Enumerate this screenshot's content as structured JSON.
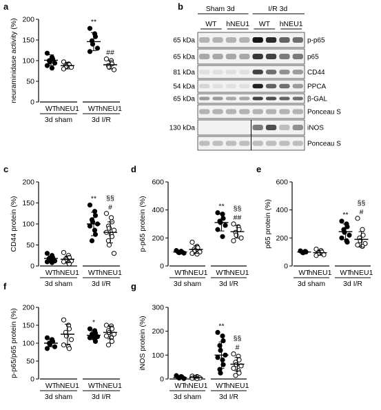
{
  "chart_data": [
    {
      "panel": "a",
      "type": "scatter",
      "ylabel": "neuraminidase activity (%)",
      "ylim": [
        0,
        200
      ],
      "yticks": [
        0,
        50,
        100,
        150,
        200
      ],
      "xgroups": [
        {
          "labels": [
            "WT",
            "hNEU1"
          ],
          "group": "3d sham"
        },
        {
          "labels": [
            "WT",
            "hNEU1"
          ],
          "group": "3d I/R"
        }
      ],
      "series": [
        {
          "x": "WT sham",
          "filled": true,
          "mean": 101,
          "sd": 13,
          "points": [
            118,
            108,
            104,
            100,
            97,
            94,
            88,
            82
          ]
        },
        {
          "x": "hNEU1 sham",
          "filled": false,
          "mean": 88,
          "sd": 8,
          "points": [
            97,
            92,
            90,
            88,
            86,
            84,
            80
          ]
        },
        {
          "x": "WT I/R",
          "filled": true,
          "mean": 146,
          "sd": 22,
          "points": [
            178,
            165,
            158,
            148,
            140,
            130,
            122
          ]
        },
        {
          "x": "hNEU1 I/R",
          "filled": false,
          "mean": 90,
          "sd": 10,
          "points": [
            104,
            100,
            92,
            88,
            84,
            78
          ]
        }
      ],
      "annotations": [
        {
          "x": "WT I/R",
          "text": "**"
        },
        {
          "x": "hNEU1 I/R",
          "text": "##"
        }
      ]
    },
    {
      "panel": "c",
      "type": "scatter",
      "ylabel": "CD44 protein (%)",
      "ylim": [
        0,
        200
      ],
      "yticks": [
        0,
        50,
        100,
        150,
        200
      ],
      "xgroups": [
        {
          "labels": [
            "WT",
            "hNEU1"
          ],
          "group": "3d sham"
        },
        {
          "labels": [
            "WT",
            "hNEU1"
          ],
          "group": "3d I/R"
        }
      ],
      "series": [
        {
          "x": "WT sham",
          "filled": true,
          "mean": 18,
          "sd": 6,
          "points": [
            30,
            25,
            20,
            18,
            15,
            12,
            10,
            8
          ]
        },
        {
          "x": "hNEU1 sham",
          "filled": false,
          "mean": 16,
          "sd": 8,
          "points": [
            32,
            25,
            20,
            17,
            15,
            12,
            10,
            8,
            5
          ]
        },
        {
          "x": "WT I/R",
          "filled": true,
          "mean": 100,
          "sd": 28,
          "points": [
            145,
            130,
            120,
            110,
            105,
            100,
            95,
            85,
            75,
            60
          ]
        },
        {
          "x": "hNEU1 I/R",
          "filled": false,
          "mean": 80,
          "sd": 25,
          "points": [
            125,
            115,
            105,
            95,
            90,
            85,
            80,
            75,
            70,
            60,
            50,
            30
          ]
        }
      ],
      "annotations": [
        {
          "x": "WT I/R",
          "text": "**"
        },
        {
          "x": "hNEU1 I/R",
          "text": "#"
        },
        {
          "x": "hNEU1 I/R",
          "text": "§§"
        }
      ]
    },
    {
      "panel": "d",
      "type": "scatter",
      "ylabel": "p-p65 protein (%)",
      "ylim": [
        0,
        600
      ],
      "yticks": [
        0,
        200,
        400,
        600
      ],
      "xgroups": [
        {
          "labels": [
            "WT",
            "hNEU1"
          ],
          "group": "3d sham"
        },
        {
          "labels": [
            "WT",
            "hNEU1"
          ],
          "group": "3d I/R"
        }
      ],
      "series": [
        {
          "x": "WT sham",
          "filled": true,
          "mean": 100,
          "sd": 8,
          "points": [
            110,
            105,
            100,
            98,
            95,
            92
          ]
        },
        {
          "x": "hNEU1 sham",
          "filled": false,
          "mean": 118,
          "sd": 28,
          "points": [
            170,
            140,
            130,
            120,
            110,
            100,
            90,
            85
          ]
        },
        {
          "x": "WT I/R",
          "filled": true,
          "mean": 310,
          "sd": 60,
          "points": [
            380,
            370,
            340,
            320,
            310,
            290,
            260,
            210
          ]
        },
        {
          "x": "hNEU1 I/R",
          "filled": false,
          "mean": 245,
          "sd": 45,
          "points": [
            300,
            280,
            260,
            240,
            220,
            200,
            180
          ]
        }
      ],
      "annotations": [
        {
          "x": "WT I/R",
          "text": "**"
        },
        {
          "x": "hNEU1 I/R",
          "text": "##"
        },
        {
          "x": "hNEU1 I/R",
          "text": "§§"
        }
      ]
    },
    {
      "panel": "e",
      "type": "scatter",
      "ylabel": "p65 protein (%)",
      "ylim": [
        0,
        600
      ],
      "yticks": [
        0,
        200,
        400,
        600
      ],
      "xgroups": [
        {
          "labels": [
            "WT",
            "hNEU1"
          ],
          "group": "3d sham"
        },
        {
          "labels": [
            "WT",
            "hNEU1"
          ],
          "group": "3d I/R"
        }
      ],
      "series": [
        {
          "x": "WT sham",
          "filled": true,
          "mean": 100,
          "sd": 6,
          "points": [
            108,
            104,
            100,
            97,
            94
          ]
        },
        {
          "x": "hNEU1 sham",
          "filled": false,
          "mean": 95,
          "sd": 18,
          "points": [
            120,
            110,
            100,
            95,
            90,
            80,
            75
          ]
        },
        {
          "x": "WT I/R",
          "filled": true,
          "mean": 245,
          "sd": 55,
          "points": [
            320,
            300,
            280,
            260,
            240,
            220,
            200,
            180,
            170
          ]
        },
        {
          "x": "hNEU1 I/R",
          "filled": false,
          "mean": 190,
          "sd": 55,
          "points": [
            340,
            260,
            220,
            200,
            180,
            160,
            150,
            140
          ]
        }
      ],
      "annotations": [
        {
          "x": "WT I/R",
          "text": "**"
        },
        {
          "x": "hNEU1 I/R",
          "text": "#"
        },
        {
          "x": "hNEU1 I/R",
          "text": "§§"
        }
      ]
    },
    {
      "panel": "f",
      "type": "scatter",
      "ylabel": "p-p65/p65 protein (%)",
      "ylim": [
        0,
        200
      ],
      "yticks": [
        0,
        50,
        100,
        150,
        200
      ],
      "xgroups": [
        {
          "labels": [
            "WT",
            "hNEU1"
          ],
          "group": "3d sham"
        },
        {
          "labels": [
            "WT",
            "hNEU1"
          ],
          "group": "3d I/R"
        }
      ],
      "series": [
        {
          "x": "WT sham",
          "filled": true,
          "mean": 100,
          "sd": 10,
          "points": [
            115,
            110,
            105,
            100,
            96,
            90,
            85
          ]
        },
        {
          "x": "hNEU1 sham",
          "filled": false,
          "mean": 125,
          "sd": 28,
          "points": [
            165,
            150,
            140,
            130,
            120,
            110,
            95,
            90,
            85
          ]
        },
        {
          "x": "WT I/R",
          "filled": true,
          "mean": 122,
          "sd": 12,
          "points": [
            140,
            135,
            128,
            125,
            120,
            118,
            115,
            112,
            105
          ]
        },
        {
          "x": "hNEU1 I/R",
          "filled": false,
          "mean": 130,
          "sd": 18,
          "points": [
            150,
            148,
            140,
            135,
            130,
            125,
            120,
            115,
            105,
            95
          ]
        }
      ],
      "annotations": [
        {
          "x": "WT I/R",
          "text": "*"
        }
      ]
    },
    {
      "panel": "g",
      "type": "scatter",
      "ylabel": "iNOS protein (%)",
      "ylim": [
        0,
        300
      ],
      "yticks": [
        0,
        100,
        200,
        300
      ],
      "xgroups": [
        {
          "labels": [
            "WT",
            "hNEU1"
          ],
          "group": "3d sham"
        },
        {
          "labels": [
            "WT",
            "hNEU1"
          ],
          "group": "3d I/R"
        }
      ],
      "series": [
        {
          "x": "WT sham",
          "filled": true,
          "mean": 6,
          "sd": 4,
          "points": [
            14,
            10,
            8,
            6,
            4,
            2
          ]
        },
        {
          "x": "hNEU1 sham",
          "filled": false,
          "mean": 6,
          "sd": 3,
          "points": [
            12,
            10,
            8,
            6,
            5,
            4,
            3,
            2
          ]
        },
        {
          "x": "WT I/R",
          "filled": true,
          "mean": 100,
          "sd": 55,
          "points": [
            195,
            180,
            160,
            140,
            120,
            100,
            90,
            80,
            60,
            40,
            25
          ]
        },
        {
          "x": "hNEU1 I/R",
          "filled": false,
          "mean": 62,
          "sd": 28,
          "points": [
            105,
            95,
            80,
            70,
            60,
            55,
            45,
            35,
            25,
            15
          ]
        }
      ],
      "annotations": [
        {
          "x": "WT I/R",
          "text": "**"
        },
        {
          "x": "hNEU1 I/R",
          "text": "#"
        },
        {
          "x": "hNEU1 I/R",
          "text": "§§"
        }
      ]
    }
  ],
  "blot": {
    "panel": "b",
    "headers": [
      "Sham 3d",
      "I/R 3d"
    ],
    "genotypes": [
      "WT",
      "hNEU1",
      "WT",
      "hNEU1"
    ],
    "rows": [
      {
        "kda": "65 kDa",
        "label": "p-p65",
        "lanes": [
          0.25,
          0.25,
          0.25,
          0.25,
          0.95,
          0.85,
          0.6,
          0.55
        ]
      },
      {
        "kda": "65 kDa",
        "label": "p65",
        "lanes": [
          0.3,
          0.3,
          0.3,
          0.3,
          0.8,
          0.75,
          0.5,
          0.5
        ]
      },
      {
        "kda": "81 kDa",
        "label": "CD44",
        "lanes": [
          0.05,
          0.05,
          0.05,
          0.05,
          0.75,
          0.55,
          0.4,
          0.35
        ]
      },
      {
        "kda": "54 kDa",
        "label": "PPCA",
        "lanes": [
          0.1,
          0.05,
          0.05,
          0.05,
          0.9,
          0.6,
          0.55,
          0.35
        ]
      },
      {
        "kda": "65 kDa",
        "label": "β-GAL",
        "lanes": [
          0.35,
          0.35,
          0.3,
          0.3,
          0.75,
          0.7,
          0.6,
          0.55
        ]
      },
      {
        "kda": "",
        "label": "Ponceau S",
        "lanes": [
          0.25,
          0.25,
          0.25,
          0.25,
          0.25,
          0.25,
          0.25,
          0.25
        ]
      },
      {
        "kda": "130 kDa",
        "label": "iNOS",
        "lanes": [
          0,
          0,
          0,
          0,
          0.5,
          0.7,
          0.2,
          0.4
        ]
      },
      {
        "kda": "",
        "label": "Ponceau S",
        "lanes": [
          0.2,
          0.2,
          0.2,
          0.2,
          0.2,
          0.2,
          0.2,
          0.2
        ]
      }
    ]
  }
}
